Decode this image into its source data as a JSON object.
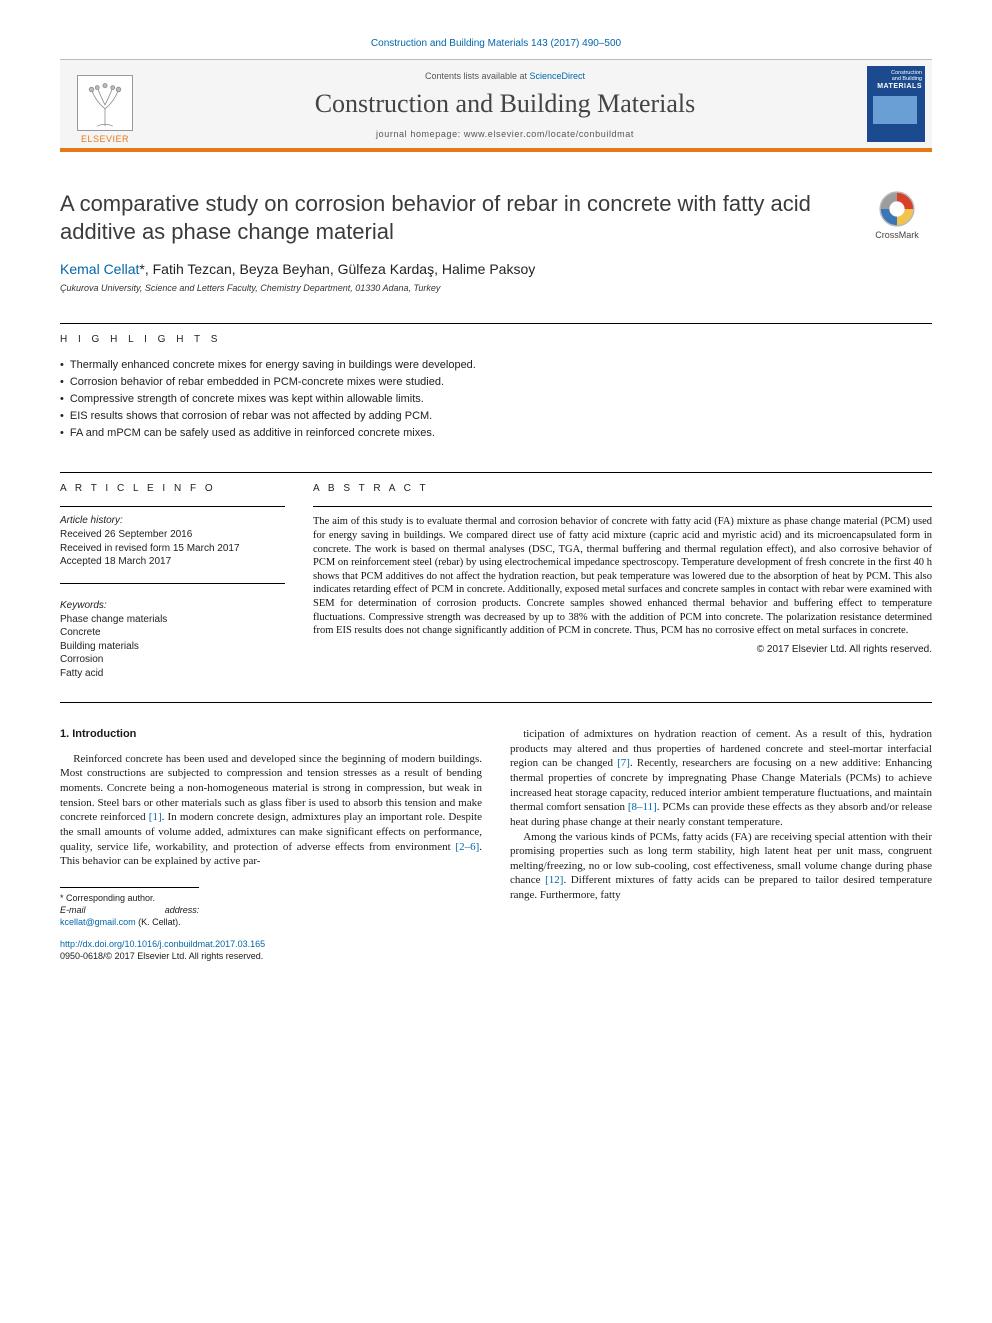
{
  "top_citation": "Construction and Building Materials 143 (2017) 490–500",
  "masthead": {
    "contents_prefix": "Contents lists available at ",
    "contents_link": "ScienceDirect",
    "journal_name": "Construction and Building Materials",
    "homepage_prefix": "journal homepage: ",
    "homepage_url": "www.elsevier.com/locate/conbuildmat",
    "publisher": "ELSEVIER",
    "cover": {
      "line1": "Construction",
      "line2": "and Building",
      "line3": "MATERIALS"
    }
  },
  "title": "A comparative study on corrosion behavior of rebar in concrete with fatty acid additive as phase change material",
  "crossmark_label": "CrossMark",
  "authors_html": "Kemal Cellat *, Fatih Tezcan, Beyza Beyhan, Gülfeza Kardaş, Halime Paksoy",
  "authors": {
    "a1": "Kemal Cellat",
    "star": "*",
    "sep": ", ",
    "a2": "Fatih Tezcan",
    "a3": "Beyza Beyhan",
    "a4": "Gülfeza Kardaş",
    "a5": "Halime Paksoy"
  },
  "affiliation": "Çukurova University, Science and Letters Faculty, Chemistry Department, 01330 Adana, Turkey",
  "highlights_label": "H I G H L I G H T S",
  "highlights": [
    "Thermally enhanced concrete mixes for energy saving in buildings were developed.",
    "Corrosion behavior of rebar embedded in PCM-concrete mixes were studied.",
    "Compressive strength of concrete mixes was kept within allowable limits.",
    "EIS results shows that corrosion of rebar was not affected by adding PCM.",
    "FA and mPCM can be safely used as additive in reinforced concrete mixes."
  ],
  "info_label": "A R T I C L E   I N F O",
  "article_history": {
    "header": "Article history:",
    "received": "Received 26 September 2016",
    "revised": "Received in revised form 15 March 2017",
    "accepted": "Accepted 18 March 2017"
  },
  "keywords_header": "Keywords:",
  "keywords": [
    "Phase change materials",
    "Concrete",
    "Building materials",
    "Corrosion",
    "Fatty acid"
  ],
  "abstract_label": "A B S T R A C T",
  "abstract_text": "The aim of this study is to evaluate thermal and corrosion behavior of concrete with fatty acid (FA) mixture as phase change material (PCM) used for energy saving in buildings. We compared direct use of fatty acid mixture (capric acid and myristic acid) and its microencapsulated form in concrete. The work is based on thermal analyses (DSC, TGA, thermal buffering and thermal regulation effect), and also corrosive behavior of PCM on reinforcement steel (rebar) by using electrochemical impedance spectroscopy. Temperature development of fresh concrete in the first 40 h shows that PCM additives do not affect the hydration reaction, but peak temperature was lowered due to the absorption of heat by PCM. This also indicates retarding effect of PCM in concrete. Additionally, exposed metal surfaces and concrete samples in contact with rebar were examined with SEM for determination of corrosion products. Concrete samples showed enhanced thermal behavior and buffering effect to temperature fluctuations. Compressive strength was decreased by up to 38% with the addition of PCM into concrete. The polarization resistance determined from EIS results does not change significantly addition of PCM in concrete. Thus, PCM has no corrosive effect on metal surfaces in concrete.",
  "abstract_copyright": "© 2017 Elsevier Ltd. All rights reserved.",
  "intro_heading": "1. Introduction",
  "intro_col1_p1": "Reinforced concrete has been used and developed since the beginning of modern buildings. Most constructions are subjected to compression and tension stresses as a result of bending moments. Concrete being a non-homogeneous material is strong in compression, but weak in tension. Steel bars or other materials such as glass fiber is used to absorb this tension and make concrete reinforced [1]. In modern concrete design, admixtures play an important role. Despite the small amounts of volume added, admixtures can make significant effects on performance, quality, service life, workability, and protection of adverse effects from environment [2–6]. This behavior can be explained by active par-",
  "intro_col2_p1": "ticipation of admixtures on hydration reaction of cement. As a result of this, hydration products may altered and thus properties of hardened concrete and steel-mortar interfacial region can be changed [7]. Recently, researchers are focusing on a new additive: Enhancing thermal properties of concrete by impregnating Phase Change Materials (PCMs) to achieve increased heat storage capacity, reduced interior ambient temperature fluctuations, and maintain thermal comfort sensation [8–11]. PCMs can provide these effects as they absorb and/or release heat during phase change at their nearly constant temperature.",
  "intro_col2_p2": "Among the various kinds of PCMs, fatty acids (FA) are receiving special attention with their promising properties such as long term stability, high latent heat per unit mass, congruent melting/freezing, no or low sub-cooling, cost effectiveness, small volume change during phase chance [12]. Different mixtures of fatty acids can be prepared to tailor desired temperature range. Furthermore, fatty",
  "footnote": {
    "corr": "* Corresponding author.",
    "email_label": "E-mail address: ",
    "email": "kcellat@gmail.com",
    "email_suffix": " (K. Cellat)."
  },
  "doi": {
    "url": "http://dx.doi.org/10.1016/j.conbuildmat.2017.03.165",
    "issn_line": "0950-0618/© 2017 Elsevier Ltd. All rights reserved."
  },
  "refs": {
    "r1": "[1]",
    "r2_6": "[2–6]",
    "r7": "[7]",
    "r8_11": "[8–11]",
    "r12": "[12]"
  },
  "colors": {
    "accent_orange": "#e67817",
    "link_blue": "#0066aa",
    "cover_blue": "#1b4a8f"
  }
}
